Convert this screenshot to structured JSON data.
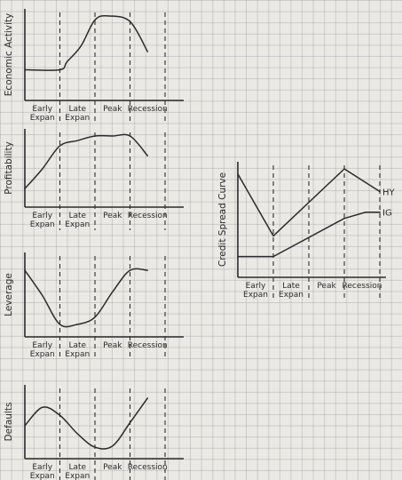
{
  "panels": [
    {
      "id": "economic-activity",
      "y_label": "Economic Activity",
      "phases": [
        "Early Expan",
        "Late Expan",
        "Peak",
        "Recession"
      ],
      "series": [
        {
          "name": "Economic Activity",
          "values": [
            [
              0,
              0.32
            ],
            [
              1,
              0.32
            ],
            [
              1.2,
              0.42
            ],
            [
              1.6,
              0.62
            ],
            [
              2.0,
              0.95
            ],
            [
              2.4,
              1.0
            ],
            [
              3.0,
              0.93
            ],
            [
              3.5,
              0.55
            ]
          ]
        }
      ]
    },
    {
      "id": "profitability",
      "y_label": "Profitability",
      "phases": [
        "Early Expan",
        "Late Expan",
        "Peak",
        "Recession"
      ],
      "series": [
        {
          "name": "Profitability",
          "values": [
            [
              0,
              0.2
            ],
            [
              0.5,
              0.5
            ],
            [
              1,
              0.85
            ],
            [
              1.5,
              0.93
            ],
            [
              2,
              1.0
            ],
            [
              2.5,
              1.0
            ],
            [
              3,
              1.0
            ],
            [
              3.5,
              0.7
            ]
          ]
        }
      ]
    },
    {
      "id": "leverage",
      "y_label": "Leverage",
      "phases": [
        "Early Expan",
        "Late Expan",
        "Peak",
        "Recession"
      ],
      "series": [
        {
          "name": "Leverage",
          "values": [
            [
              0,
              0.85
            ],
            [
              0.5,
              0.5
            ],
            [
              1,
              0.1
            ],
            [
              1.5,
              0.1
            ],
            [
              2,
              0.2
            ],
            [
              2.5,
              0.55
            ],
            [
              3,
              0.85
            ],
            [
              3.5,
              0.85
            ]
          ]
        }
      ]
    },
    {
      "id": "defaults",
      "y_label": "Defaults",
      "phases": [
        "Early Expan",
        "Late Expan",
        "Peak",
        "Recession"
      ],
      "series": [
        {
          "name": "Defaults",
          "values": [
            [
              0,
              0.45
            ],
            [
              0.5,
              0.75
            ],
            [
              1,
              0.62
            ],
            [
              1.5,
              0.32
            ],
            [
              2,
              0.1
            ],
            [
              2.5,
              0.12
            ],
            [
              3,
              0.5
            ],
            [
              3.5,
              0.9
            ]
          ]
        }
      ]
    }
  ],
  "spread_panel": {
    "id": "credit-spread-curve",
    "y_label": "Credit Spread Curve",
    "phases": [
      "Early Expan",
      "Late Expan",
      "Peak",
      "Recession"
    ],
    "series": [
      {
        "name": "HY",
        "values": [
          [
            0,
            0.95
          ],
          [
            1,
            0.35
          ],
          [
            3,
            1.0
          ],
          [
            4,
            0.78
          ]
        ]
      },
      {
        "name": "IG",
        "values": [
          [
            0,
            0.15
          ],
          [
            1,
            0.15
          ],
          [
            3,
            0.52
          ],
          [
            3.6,
            0.58
          ],
          [
            4,
            0.58
          ]
        ]
      }
    ]
  }
}
